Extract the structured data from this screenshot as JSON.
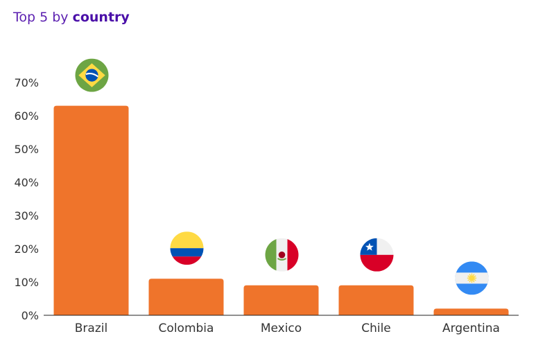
{
  "title": {
    "prefix": "Top 5 by",
    "emphasis": "country"
  },
  "colors": {
    "bar": "#ef742b",
    "axis": "#222222",
    "title": "#5b1fb0"
  },
  "chart_data": {
    "type": "bar",
    "title": "Top 5 by country",
    "xlabel": "",
    "ylabel": "",
    "categories": [
      "Brazil",
      "Colombia",
      "Mexico",
      "Chile",
      "Argentina"
    ],
    "values": [
      63,
      11,
      9,
      9,
      2
    ],
    "ylim": [
      0,
      70
    ],
    "yticks": [
      "0%",
      "10%",
      "20%",
      "30%",
      "40%",
      "50%",
      "60%",
      "70%"
    ],
    "grid": false,
    "legend": "none",
    "icons": [
      "brazil-flag-icon",
      "colombia-flag-icon",
      "mexico-flag-icon",
      "chile-flag-icon",
      "argentina-flag-icon"
    ]
  }
}
